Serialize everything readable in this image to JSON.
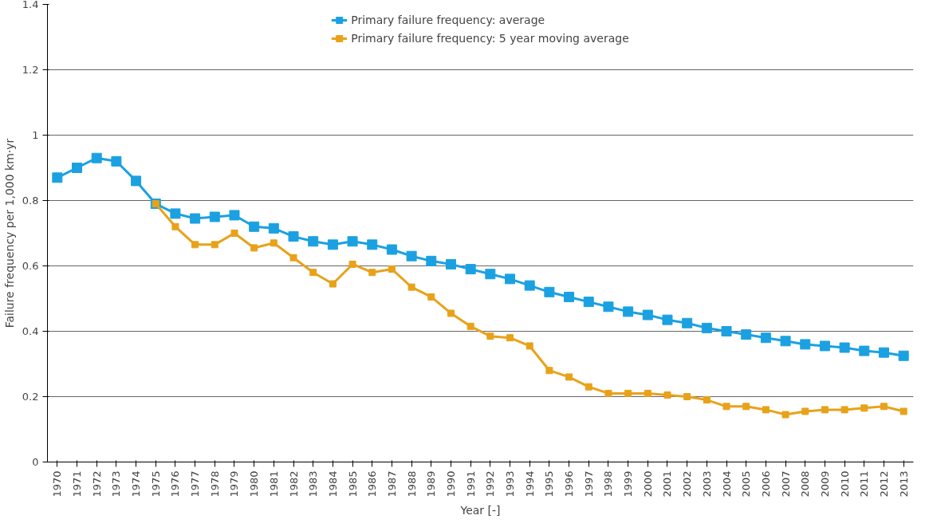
{
  "chart_data": {
    "type": "line",
    "xlabel": "Year [-]",
    "ylabel": "Failure frequency per 1,000 km·yr",
    "categories": [
      "1970",
      "1971",
      "1972",
      "1973",
      "1974",
      "1975",
      "1976",
      "1977",
      "1978",
      "1979",
      "1980",
      "1981",
      "1982",
      "1983",
      "1984",
      "1985",
      "1986",
      "1987",
      "1988",
      "1989",
      "1990",
      "1991",
      "1992",
      "1993",
      "1994",
      "1995",
      "1996",
      "1997",
      "1998",
      "1999",
      "2000",
      "2001",
      "2002",
      "2003",
      "2004",
      "2005",
      "2006",
      "2007",
      "2008",
      "2009",
      "2010",
      "2011",
      "2012",
      "2013"
    ],
    "series": [
      {
        "name": "Primary failure frequency: average",
        "color": "#1ba1e2",
        "values": [
          0.87,
          0.9,
          0.93,
          0.92,
          0.86,
          0.79,
          0.76,
          0.745,
          0.75,
          0.755,
          0.72,
          0.715,
          0.69,
          0.675,
          0.665,
          0.675,
          0.665,
          0.65,
          0.63,
          0.615,
          0.605,
          0.59,
          0.575,
          0.56,
          0.54,
          0.52,
          0.505,
          0.49,
          0.475,
          0.46,
          0.45,
          0.435,
          0.425,
          0.41,
          0.4,
          0.39,
          0.38,
          0.37,
          0.36,
          0.355,
          0.35,
          0.34,
          0.335,
          0.325
        ]
      },
      {
        "name": "Primary failure frequency: 5 year moving average",
        "color": "#e8a21a",
        "values": [
          null,
          null,
          null,
          null,
          null,
          0.79,
          0.72,
          0.665,
          0.665,
          0.7,
          0.655,
          0.67,
          0.625,
          0.58,
          0.545,
          0.605,
          0.58,
          0.59,
          0.535,
          0.505,
          0.455,
          0.415,
          0.385,
          0.38,
          0.355,
          0.28,
          0.26,
          0.23,
          0.21,
          0.21,
          0.21,
          0.205,
          0.2,
          0.19,
          0.17,
          0.17,
          0.16,
          0.145,
          0.155,
          0.16,
          0.16,
          0.165,
          0.17,
          0.155
        ]
      }
    ],
    "ylim": [
      0,
      1.4
    ],
    "yticks": [
      0,
      0.2,
      0.4,
      0.6,
      0.8,
      1,
      1.2,
      1.4
    ],
    "grid": "y",
    "legend": "top",
    "marker": "square",
    "line_style": "solid"
  }
}
